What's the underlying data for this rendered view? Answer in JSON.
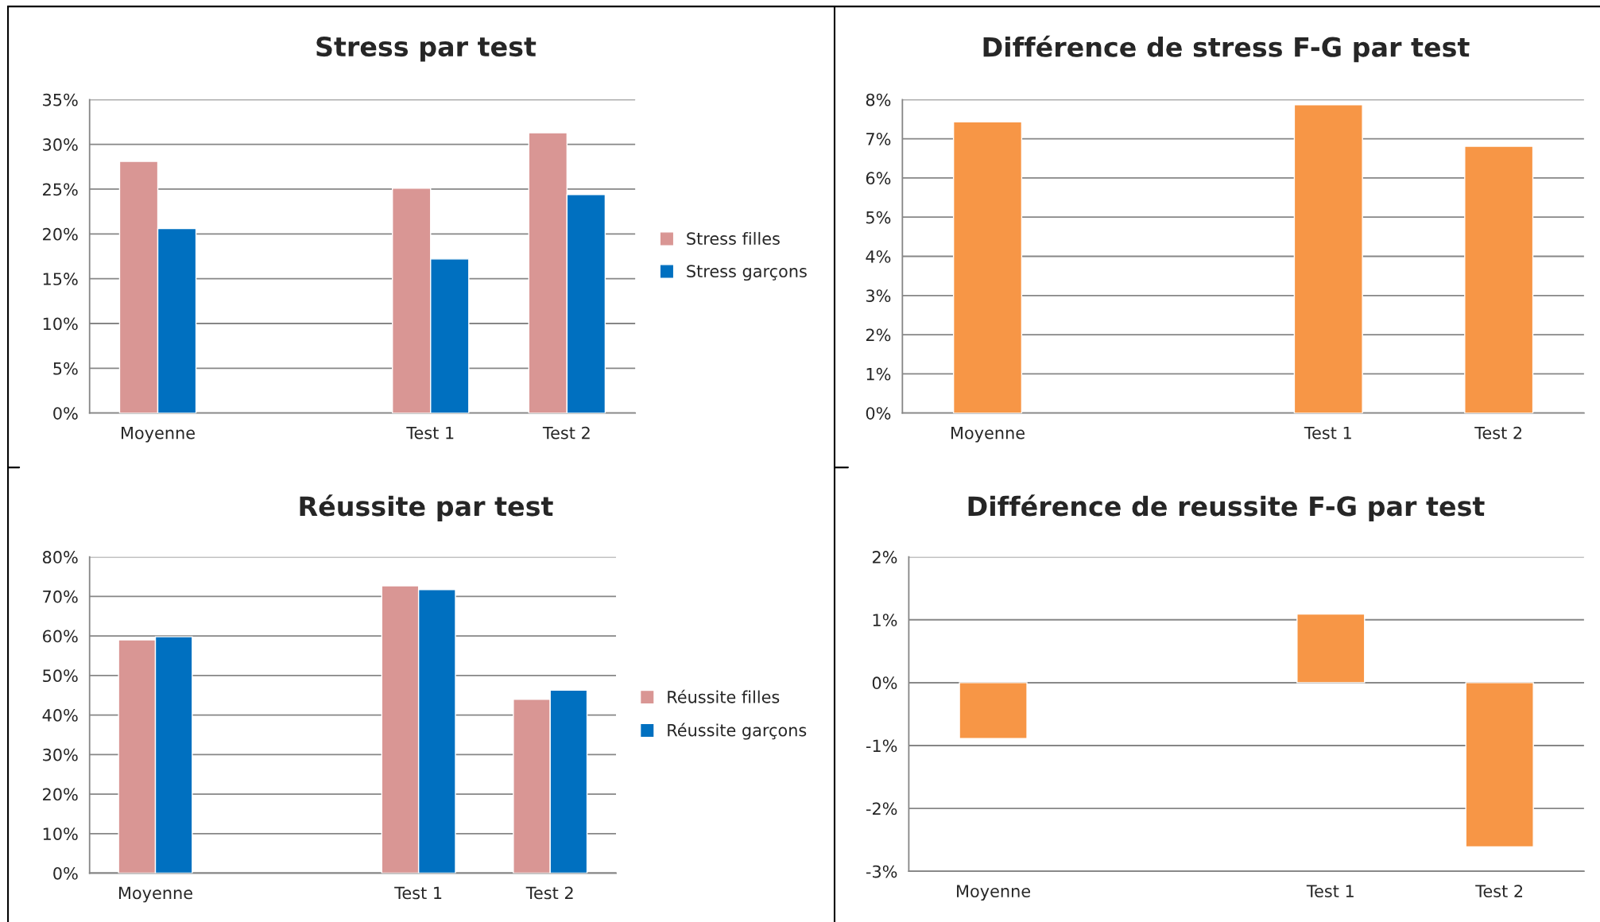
{
  "chart_data": [
    {
      "type": "bar",
      "title": "Stress par test",
      "categories": [
        "Moyenne",
        null,
        "Test 1",
        "Test 2"
      ],
      "series": [
        {
          "name": "Stress filles",
          "color": "#d99694",
          "values": [
            28.1,
            null,
            25.1,
            31.3
          ]
        },
        {
          "name": "Stress garçons",
          "color": "#0070c0",
          "values": [
            20.6,
            null,
            17.2,
            24.4
          ]
        }
      ],
      "ylim": [
        0,
        35
      ],
      "yticks": [
        {
          "value": 0,
          "label": "0%"
        },
        {
          "value": 5,
          "label": "5%"
        },
        {
          "value": 10,
          "label": "10%"
        },
        {
          "value": 15,
          "label": "15%"
        },
        {
          "value": 20,
          "label": "20%"
        },
        {
          "value": 25,
          "label": "25%"
        },
        {
          "value": 30,
          "label": "30%"
        },
        {
          "value": 35,
          "label": "35%"
        }
      ],
      "grid": "y",
      "legend": "right"
    },
    {
      "type": "bar",
      "title": "Différence de stress F-G par test",
      "categories": [
        "Moyenne",
        null,
        "Test 1",
        "Test 2"
      ],
      "series": [
        {
          "color": "#f79646",
          "values": [
            7.43,
            null,
            7.87,
            6.81
          ]
        }
      ],
      "ylim": [
        0,
        8
      ],
      "yticks": [
        {
          "value": 0,
          "label": "0%"
        },
        {
          "value": 1,
          "label": "1%"
        },
        {
          "value": 2,
          "label": "2%"
        },
        {
          "value": 3,
          "label": "3%"
        },
        {
          "value": 4,
          "label": "4%"
        },
        {
          "value": 5,
          "label": "5%"
        },
        {
          "value": 6,
          "label": "6%"
        },
        {
          "value": 7,
          "label": "7%"
        },
        {
          "value": 8,
          "label": "8%"
        }
      ],
      "grid": "y"
    },
    {
      "type": "bar",
      "title": "Réussite par test",
      "categories": [
        "Moyenne",
        null,
        "Test 1",
        "Test 2"
      ],
      "series": [
        {
          "name": "Réussite filles",
          "color": "#d99694",
          "values": [
            59.0,
            null,
            72.7,
            44.0
          ]
        },
        {
          "name": "Réussite garçons",
          "color": "#0070c0",
          "values": [
            59.8,
            null,
            71.7,
            46.3
          ]
        }
      ],
      "ylim": [
        0,
        80
      ],
      "yticks": [
        {
          "value": 0,
          "label": "0%"
        },
        {
          "value": 10,
          "label": "10%"
        },
        {
          "value": 20,
          "label": "20%"
        },
        {
          "value": 30,
          "label": "30%"
        },
        {
          "value": 40,
          "label": "40%"
        },
        {
          "value": 50,
          "label": "50%"
        },
        {
          "value": 60,
          "label": "60%"
        },
        {
          "value": 70,
          "label": "70%"
        },
        {
          "value": 80,
          "label": "80%"
        }
      ],
      "grid": "y",
      "legend": "right"
    },
    {
      "type": "bar",
      "title": "Différence de reussite F-G par test",
      "categories": [
        "Moyenne",
        null,
        "Test 1",
        "Test 2"
      ],
      "series": [
        {
          "color": "#f79646",
          "values": [
            -0.89,
            null,
            1.09,
            -2.61
          ]
        }
      ],
      "ylim": [
        -3,
        2
      ],
      "yticks": [
        {
          "value": -3,
          "label": "-3%"
        },
        {
          "value": -2,
          "label": "-2%"
        },
        {
          "value": -1,
          "label": "-1%"
        },
        {
          "value": 0,
          "label": "0%"
        },
        {
          "value": 1,
          "label": "1%"
        },
        {
          "value": 2,
          "label": "2%"
        }
      ],
      "grid": "y"
    }
  ]
}
